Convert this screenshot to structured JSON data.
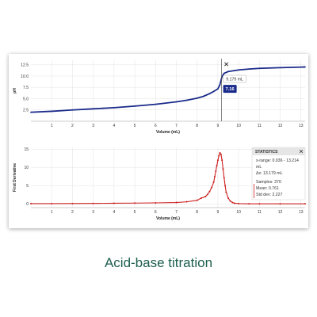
{
  "caption": "Acid-base titration",
  "colors": {
    "top_line": "#1a2a8a",
    "bottom_line": "#cc1f1f",
    "accent": "#1a2a8a"
  },
  "cursor": {
    "x": 9.179,
    "readout": "9.179 mL",
    "value_label": "7.16",
    "close_icon": "close-icon"
  },
  "stats": {
    "title": "STATISTICS",
    "lines": [
      "x-range: 0.036 - 13.214",
      "mL",
      "Δx: 13.179 mL",
      "Samples: 370",
      "Mean: 0.761",
      "Std dev: 2.227"
    ]
  },
  "chart_data": [
    {
      "type": "line",
      "name": "top",
      "xlabel": "Volume (mL)",
      "ylabel": "pH",
      "xlim": [
        0,
        13.2
      ],
      "ylim": [
        0,
        13.5
      ],
      "xticks": [
        1,
        2,
        3,
        4,
        5,
        6,
        7,
        8,
        9,
        10,
        11,
        12,
        13
      ],
      "yticks": [
        2.5,
        5.0,
        7.5,
        10.0,
        12.5
      ],
      "grid": true,
      "x": [
        0,
        1,
        2,
        3,
        4,
        5,
        6,
        7,
        7.5,
        8,
        8.3,
        8.6,
        8.8,
        9.0,
        9.1,
        9.2,
        9.3,
        9.5,
        10,
        10.5,
        11,
        12,
        13.2
      ],
      "y": [
        2.0,
        2.2,
        2.5,
        2.75,
        3.0,
        3.35,
        3.75,
        4.3,
        4.65,
        5.1,
        5.5,
        6.1,
        6.6,
        7.16,
        8.1,
        9.9,
        10.6,
        11.0,
        11.35,
        11.55,
        11.7,
        11.85,
        12.0
      ]
    },
    {
      "type": "line",
      "name": "bottom",
      "xlabel": "Volume (mL)",
      "ylabel": "First Derivative",
      "xlim": [
        0,
        13.2
      ],
      "ylim": [
        -1,
        15.5
      ],
      "xticks": [
        1,
        2,
        3,
        4,
        5,
        6,
        7,
        8,
        9,
        10,
        11,
        12,
        13
      ],
      "yticks": [
        0,
        5,
        10,
        15
      ],
      "grid": true,
      "x": [
        0,
        1,
        2,
        3,
        4,
        5,
        6,
        7,
        7.5,
        8.0,
        8.2,
        8.4,
        8.5,
        8.6,
        8.7,
        8.8,
        8.85,
        8.9,
        8.95,
        9.0,
        9.05,
        9.1,
        9.15,
        9.2,
        9.25,
        9.3,
        9.35,
        9.4,
        9.5,
        9.6,
        9.7,
        9.8,
        10.0,
        10.5,
        11,
        12,
        13.2
      ],
      "y": [
        0.1,
        0.1,
        0.12,
        0.15,
        0.2,
        0.25,
        0.3,
        0.4,
        0.6,
        1.0,
        1.6,
        2.0,
        2.6,
        3.4,
        4.5,
        6.0,
        7.5,
        9.0,
        10.5,
        12.0,
        13.2,
        14.0,
        13.6,
        12.0,
        9.6,
        7.2,
        5.0,
        3.2,
        1.6,
        0.8,
        0.4,
        0.2,
        0.1,
        0.05,
        0.05,
        0.05,
        0.05
      ]
    }
  ]
}
